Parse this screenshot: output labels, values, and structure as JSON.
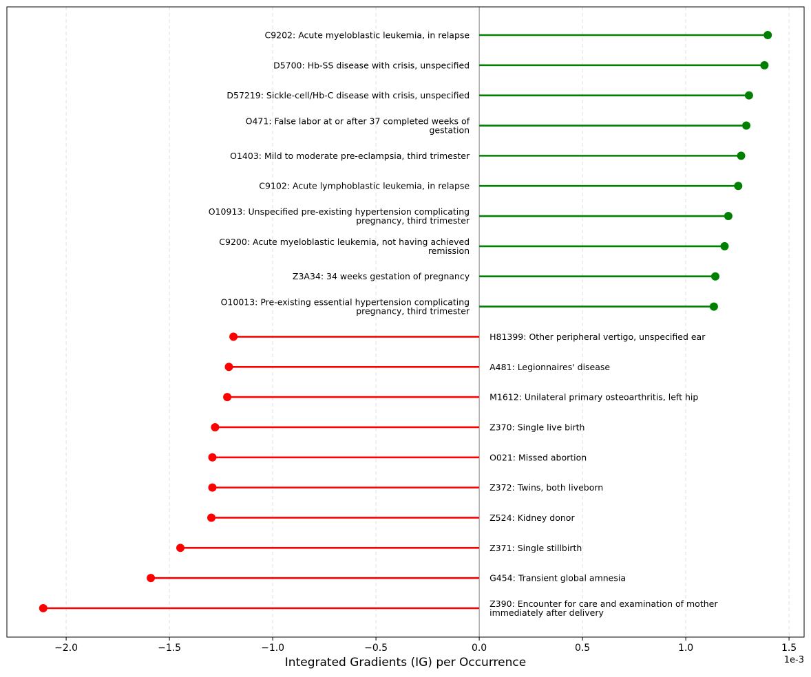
{
  "chart_data": {
    "type": "lollipop-horizontal",
    "title": "",
    "xlabel": "Integrated Gradients (IG) per Occurrence",
    "ylabel": "",
    "x_offset_label": "1e-3",
    "xlim": [
      -2.287,
      1.573
    ],
    "xticks": [
      -2.0,
      -1.5,
      -1.0,
      -0.5,
      0.0,
      0.5,
      1.0,
      1.5
    ],
    "xtick_labels": [
      "−2.0",
      "−1.5",
      "−1.0",
      "−0.5",
      "0.0",
      "0.5",
      "1.0",
      "1.5"
    ],
    "grid": "vertical dashed",
    "colors": {
      "positive": "#008000",
      "negative": "#ff0000",
      "zero_line": "#808080",
      "grid": "#e0e0e0"
    },
    "items": [
      {
        "label": "C9202: Acute myeloblastic leukemia, in relapse",
        "value": 1.397
      },
      {
        "label": "D5700: Hb-SS disease with crisis, unspecified",
        "value": 1.381
      },
      {
        "label": "D57219: Sickle-cell/Hb-C disease with crisis, unspecified",
        "value": 1.306
      },
      {
        "label": "O471: False labor at or after 37 completed weeks of gestation",
        "value": 1.293
      },
      {
        "label": "O1403: Mild to moderate pre-eclampsia, third trimester",
        "value": 1.268
      },
      {
        "label": "C9102: Acute lymphoblastic leukemia, in relapse",
        "value": 1.254
      },
      {
        "label": "O10913: Unspecified pre-existing hypertension complicating pregnancy, third trimester",
        "value": 1.206
      },
      {
        "label": "C9200: Acute myeloblastic leukemia, not having achieved remission",
        "value": 1.188
      },
      {
        "label": "Z3A34: 34 weeks gestation of pregnancy",
        "value": 1.143
      },
      {
        "label": "O10013: Pre-existing essential hypertension complicating pregnancy, third trimester",
        "value": 1.136
      },
      {
        "label": "H81399: Other peripheral vertigo, unspecified ear",
        "value": -1.19
      },
      {
        "label": "A481: Legionnaires' disease",
        "value": -1.212
      },
      {
        "label": "M1612: Unilateral primary osteoarthritis, left hip",
        "value": -1.22
      },
      {
        "label": "Z370: Single live birth",
        "value": -1.279
      },
      {
        "label": "O021: Missed abortion",
        "value": -1.292
      },
      {
        "label": "Z372: Twins, both liveborn",
        "value": -1.292
      },
      {
        "label": "Z524: Kidney donor",
        "value": -1.297
      },
      {
        "label": "Z371: Single stillbirth",
        "value": -1.447
      },
      {
        "label": "G454: Transient global amnesia",
        "value": -1.59
      },
      {
        "label": "Z390: Encounter for care and examination of mother immediately after delivery",
        "value": -2.111
      }
    ]
  }
}
